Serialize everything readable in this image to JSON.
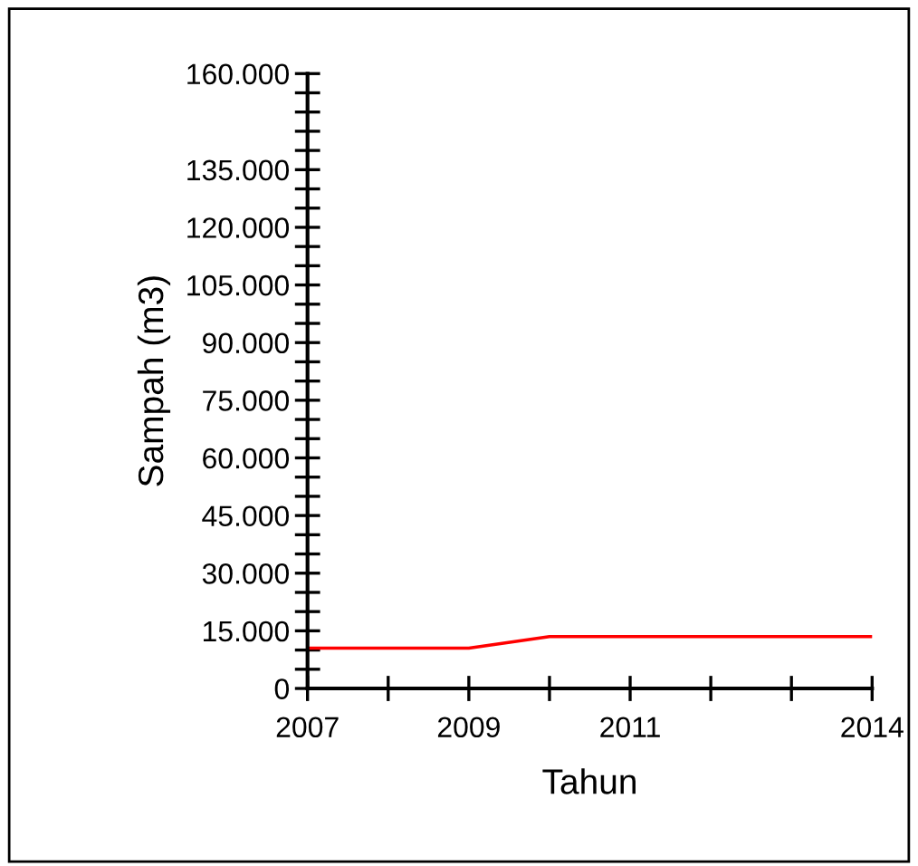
{
  "chart_data": {
    "type": "line",
    "xlabel": "Tahun",
    "ylabel": "Sampah (m3)",
    "x": [
      2007,
      2008,
      2009,
      2010,
      2011,
      2012,
      2013,
      2014
    ],
    "series": [
      {
        "color": "#ff0000",
        "values": [
          10500,
          10500,
          10500,
          13500,
          13500,
          13500,
          13500,
          13500
        ]
      }
    ],
    "xlim": [
      2007,
      2014
    ],
    "xticks": [
      2007,
      {
        "value": 2008,
        "label": null
      },
      2009,
      {
        "value": 2010,
        "label": null
      },
      2011,
      {
        "value": 2012,
        "label": null
      },
      {
        "value": 2013,
        "label": null
      },
      2014
    ],
    "ylim": [
      0,
      160000
    ],
    "yticks": [
      {
        "value": 0,
        "label": "0"
      },
      {
        "value": 5000,
        "label": null
      },
      {
        "value": 10000,
        "label": null
      },
      {
        "value": 15000,
        "label": "15.000"
      },
      {
        "value": 20000,
        "label": null
      },
      {
        "value": 25000,
        "label": null
      },
      {
        "value": 30000,
        "label": "30.000"
      },
      {
        "value": 35000,
        "label": null
      },
      {
        "value": 40000,
        "label": null
      },
      {
        "value": 45000,
        "label": "45.000"
      },
      {
        "value": 50000,
        "label": null
      },
      {
        "value": 55000,
        "label": null
      },
      {
        "value": 60000,
        "label": "60.000"
      },
      {
        "value": 65000,
        "label": null
      },
      {
        "value": 70000,
        "label": null
      },
      {
        "value": 75000,
        "label": "75.000"
      },
      {
        "value": 80000,
        "label": null
      },
      {
        "value": 85000,
        "label": null
      },
      {
        "value": 90000,
        "label": "90.000"
      },
      {
        "value": 95000,
        "label": null
      },
      {
        "value": 100000,
        "label": null
      },
      {
        "value": 105000,
        "label": "105.000"
      },
      {
        "value": 110000,
        "label": null
      },
      {
        "value": 115000,
        "label": null
      },
      {
        "value": 120000,
        "label": "120.000"
      },
      {
        "value": 125000,
        "label": null
      },
      {
        "value": 130000,
        "label": null
      },
      {
        "value": 135000,
        "label": "135.000"
      },
      {
        "value": 140000,
        "label": null
      },
      {
        "value": 145000,
        "label": null
      },
      {
        "value": 150000,
        "label": null
      },
      {
        "value": 155000,
        "label": null
      },
      {
        "value": 160000,
        "label": "160.000"
      }
    ],
    "grid": false,
    "marker": "none",
    "line_style": "solid"
  }
}
